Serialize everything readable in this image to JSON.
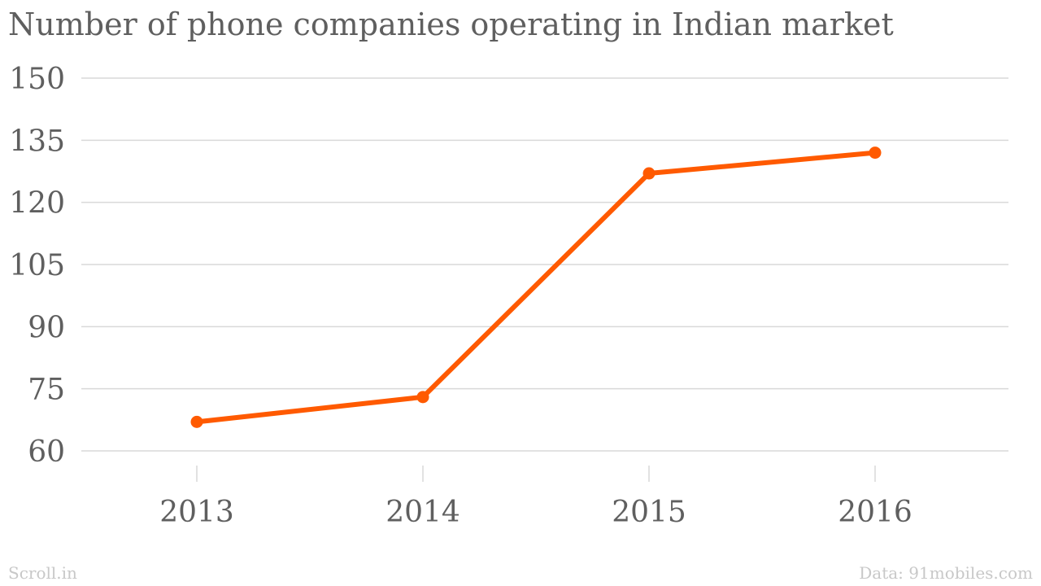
{
  "chart_data": {
    "type": "line",
    "title": "Number of phone companies operating in Indian market",
    "categories": [
      "2013",
      "2014",
      "2015",
      "2016"
    ],
    "series": [
      {
        "values": [
          67,
          73,
          127,
          132
        ]
      }
    ],
    "ylim": [
      60,
      150
    ],
    "yticks": [
      "60",
      "75",
      "90",
      "105",
      "120",
      "135",
      "150"
    ],
    "grid": true,
    "line_color": "#ff5a00",
    "grid_color": "#d9d9d9"
  },
  "footer": {
    "source_label": "Scroll.in",
    "credit_label": "Data: 91mobiles.com"
  }
}
